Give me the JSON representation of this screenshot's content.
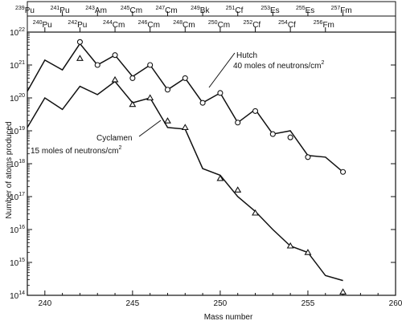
{
  "chart_data": {
    "type": "line",
    "xlabel": "Mass number",
    "ylabel": "Number of atoms produced",
    "xlim": [
      239,
      260
    ],
    "ylim_exponent": [
      14,
      22
    ],
    "yscale": "log",
    "x_ticks": [
      240,
      245,
      250,
      255,
      260
    ],
    "y_ticks": [
      {
        "base": "10",
        "exp": "14"
      },
      {
        "base": "10",
        "exp": "15"
      },
      {
        "base": "10",
        "exp": "16"
      },
      {
        "base": "10",
        "exp": "17"
      },
      {
        "base": "10",
        "exp": "18"
      },
      {
        "base": "10",
        "exp": "19"
      },
      {
        "base": "10",
        "exp": "20"
      },
      {
        "base": "10",
        "exp": "21"
      },
      {
        "base": "10",
        "exp": "22"
      }
    ],
    "top_axis_upper": [
      {
        "x": 239,
        "mass": "239",
        "el": "Pu"
      },
      {
        "x": 241,
        "mass": "241",
        "el": "Pu"
      },
      {
        "x": 243,
        "mass": "243",
        "el": "Am"
      },
      {
        "x": 245,
        "mass": "245",
        "el": "Cm"
      },
      {
        "x": 247,
        "mass": "247",
        "el": "Cm"
      },
      {
        "x": 249,
        "mass": "249",
        "el": "Bk"
      },
      {
        "x": 251,
        "mass": "251",
        "el": "Cf"
      },
      {
        "x": 253,
        "mass": "253",
        "el": "Es"
      },
      {
        "x": 255,
        "mass": "255",
        "el": "Es"
      },
      {
        "x": 257,
        "mass": "257",
        "el": "Fm"
      }
    ],
    "top_axis_lower": [
      {
        "x": 240,
        "mass": "240",
        "el": "Pu"
      },
      {
        "x": 242,
        "mass": "242",
        "el": "Pu"
      },
      {
        "x": 244,
        "mass": "244",
        "el": "Cm"
      },
      {
        "x": 246,
        "mass": "246",
        "el": "Cm"
      },
      {
        "x": 248,
        "mass": "248",
        "el": "Cm"
      },
      {
        "x": 250,
        "mass": "250",
        "el": "Cm"
      },
      {
        "x": 252,
        "mass": "252",
        "el": "Cf"
      },
      {
        "x": 254,
        "mass": "254",
        "el": "Cf"
      },
      {
        "x": 256,
        "mass": "256",
        "el": "Fm"
      }
    ],
    "series": [
      {
        "name_line1": "Hutch",
        "name_line2_prefix": "40 moles of neutrons/cm",
        "name_line2_sup": "2",
        "marker": "circle",
        "x": [
          239,
          240,
          241,
          242,
          243,
          244,
          245,
          246,
          247,
          248,
          249,
          250,
          251,
          252,
          253,
          254,
          255,
          256,
          257
        ],
        "log10_y": [
          20.2,
          21.15,
          20.85,
          21.65,
          21.0,
          21.3,
          20.65,
          21.0,
          20.25,
          20.6,
          19.85,
          20.15,
          19.25,
          19.65,
          18.9,
          19.0,
          18.25,
          18.2,
          17.75
        ],
        "marker_x": [
          242,
          243,
          244,
          245,
          246,
          247,
          248,
          249,
          250,
          251,
          252,
          253,
          254,
          255,
          257
        ],
        "marker_log10_y": [
          21.7,
          21.0,
          21.3,
          20.6,
          21.0,
          20.25,
          20.6,
          19.85,
          20.15,
          19.25,
          19.6,
          18.9,
          18.8,
          18.2,
          17.75
        ]
      },
      {
        "name_line1": "Cyclamen",
        "name_line2_prefix": "15 moles of neutrons/cm",
        "name_line2_sup": "2",
        "marker": "triangle",
        "x": [
          239,
          240,
          241,
          242,
          243,
          244,
          245,
          246,
          247,
          248,
          249,
          250,
          251,
          252,
          253,
          254,
          255,
          256,
          257
        ],
        "log10_y": [
          19.1,
          20.0,
          19.65,
          20.35,
          20.1,
          20.5,
          19.85,
          20.0,
          19.1,
          19.05,
          17.85,
          17.65,
          17.0,
          16.55,
          16.0,
          15.5,
          15.3,
          14.6,
          14.45
        ],
        "marker_x": [
          242,
          244,
          245,
          246,
          247,
          248,
          250,
          251,
          252,
          254,
          255,
          257
        ],
        "marker_log10_y": [
          21.2,
          20.55,
          19.8,
          20.0,
          19.3,
          19.1,
          17.55,
          17.2,
          16.5,
          15.5,
          15.3,
          14.1
        ]
      }
    ]
  }
}
